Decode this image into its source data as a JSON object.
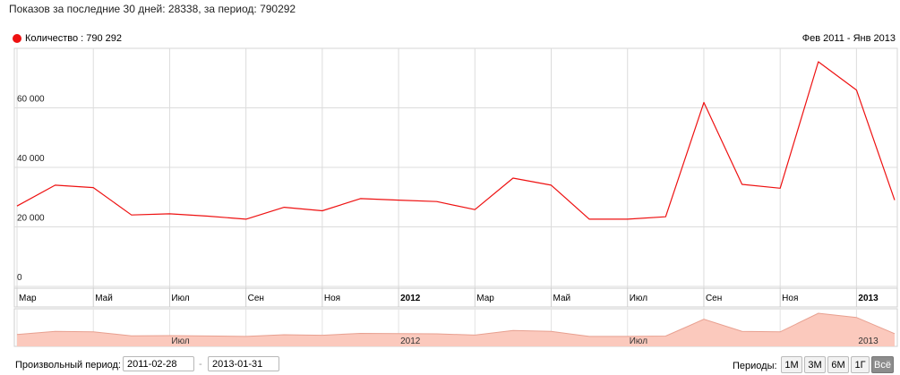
{
  "header": {
    "summary": "Показов за последние 30 дней: 28338, за период: 790292"
  },
  "legend": {
    "label": "Количество : 790 292",
    "color": "#ee1111"
  },
  "range_label": "Фев 2011 - Янв 2013",
  "controls": {
    "custom_label": "Произвольный период:",
    "start_date": "2011-02-28",
    "end_date": "2013-01-31",
    "separator": "-",
    "periods_label": "Периоды:",
    "periods": [
      "1М",
      "3М",
      "6М",
      "1Г",
      "Всё"
    ],
    "active_period": "Всё"
  },
  "chart_data": {
    "type": "line",
    "series": [
      {
        "name": "Количество",
        "color": "#ee1111",
        "values": [
          27000,
          34000,
          33200,
          24000,
          24400,
          23600,
          22600,
          26600,
          25400,
          29500,
          29000,
          28500,
          25800,
          36400,
          34000,
          22600,
          22600,
          23400,
          61800,
          34300,
          33000,
          75500,
          66000,
          29000
        ]
      }
    ],
    "y_ticks": [
      0,
      20000,
      40000,
      60000
    ],
    "y_tick_labels": [
      "0",
      "20 000",
      "40 000",
      "60 000"
    ],
    "ylim": [
      0,
      80000
    ],
    "x_ticks": [
      {
        "index": 0,
        "label": "Мар",
        "bold": false
      },
      {
        "index": 2,
        "label": "Май",
        "bold": false
      },
      {
        "index": 4,
        "label": "Июл",
        "bold": false
      },
      {
        "index": 6,
        "label": "Сен",
        "bold": false
      },
      {
        "index": 8,
        "label": "Ноя",
        "bold": false
      },
      {
        "index": 10,
        "label": "2012",
        "bold": true
      },
      {
        "index": 12,
        "label": "Мар",
        "bold": false
      },
      {
        "index": 14,
        "label": "Май",
        "bold": false
      },
      {
        "index": 16,
        "label": "Июл",
        "bold": false
      },
      {
        "index": 18,
        "label": "Сен",
        "bold": false
      },
      {
        "index": 20,
        "label": "Ноя",
        "bold": false
      },
      {
        "index": 22,
        "label": "2013",
        "bold": true
      }
    ],
    "navigator_labels": [
      {
        "index": 4,
        "label": "Июл"
      },
      {
        "index": 10,
        "label": "2012"
      },
      {
        "index": 16,
        "label": "Июл"
      },
      {
        "index": 22,
        "label": "2013"
      }
    ],
    "grid": true
  }
}
